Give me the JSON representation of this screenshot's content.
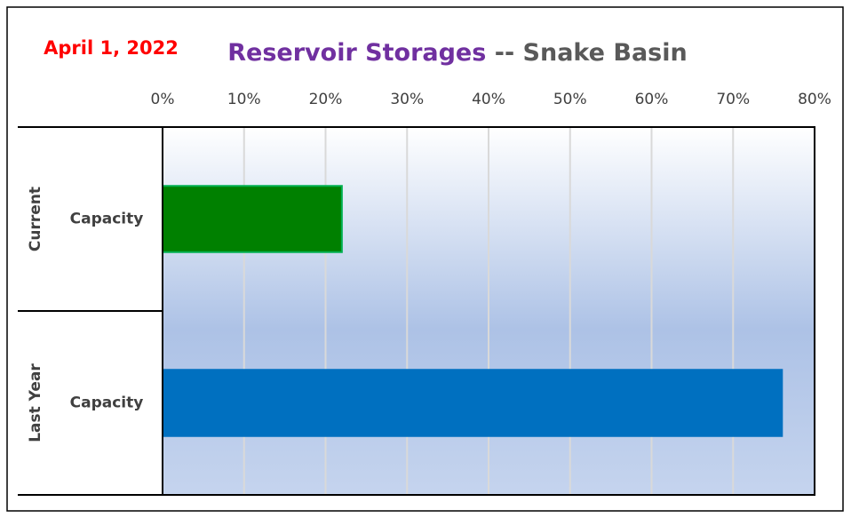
{
  "chart_data": {
    "type": "bar",
    "orientation": "horizontal",
    "annotation": "April 1, 2022",
    "title": "Reservoir Storages",
    "title_suffix": "-- Snake Basin",
    "groups": [
      "Current",
      "Last Year"
    ],
    "categories": [
      "Capacity",
      "Capacity"
    ],
    "values": [
      22,
      76
    ],
    "colors": [
      "#008000",
      "#0070c0"
    ],
    "xlim": [
      0,
      80
    ],
    "xticks": [
      {
        "value": 0,
        "label": "0%"
      },
      {
        "value": 10,
        "label": "10%"
      },
      {
        "value": 20,
        "label": "20%"
      },
      {
        "value": 30,
        "label": "30%"
      },
      {
        "value": 40,
        "label": "40%"
      },
      {
        "value": 50,
        "label": "50%"
      },
      {
        "value": 60,
        "label": "60%"
      },
      {
        "value": 70,
        "label": "70%"
      },
      {
        "value": 80,
        "label": "80%"
      }
    ],
    "grid": true
  }
}
